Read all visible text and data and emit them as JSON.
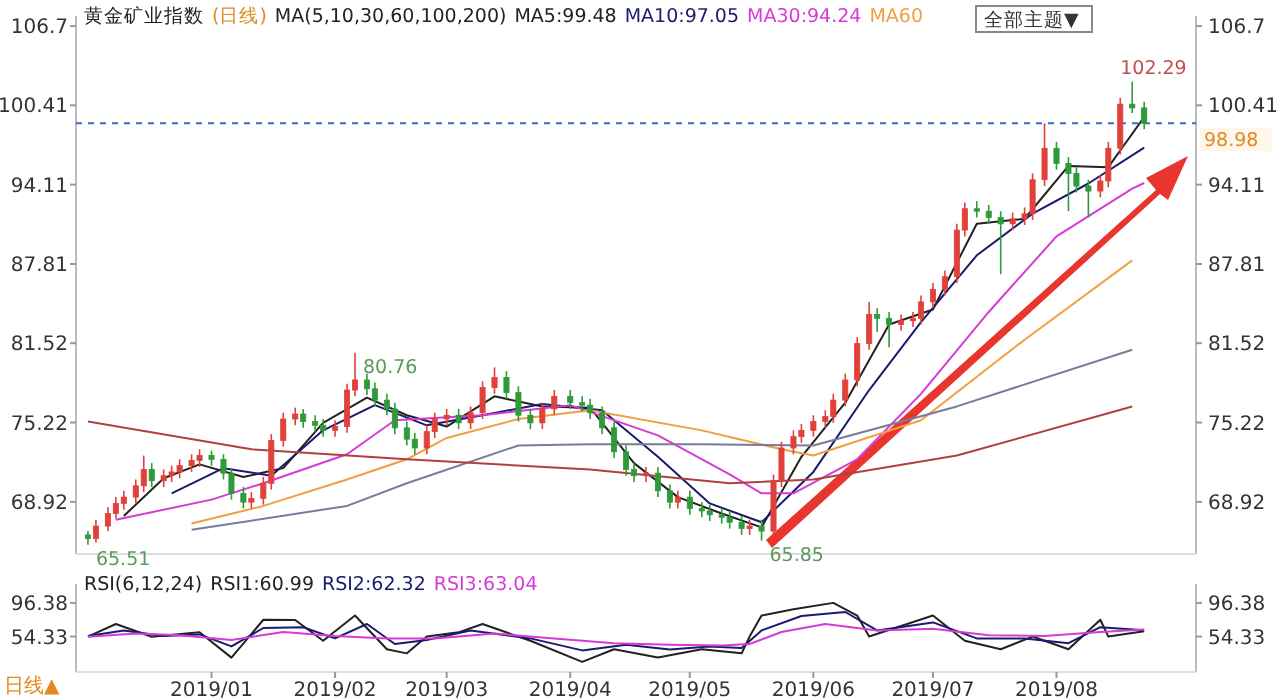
{
  "chart_data": [
    {
      "type": "candlestick",
      "title": "黄金矿业指数",
      "subtitle": "(日线)",
      "annotations": [
        "MA(5,10,30,60,100,200)",
        "全部主题▼",
        "日线▲",
        {
          "text": "102.29",
          "x": "2019-08-20",
          "y": 102.29
        },
        {
          "text": "80.76",
          "x": "2019-02-06",
          "y": 80.76
        },
        {
          "text": "65.51",
          "x": "2018-12-01",
          "y": 65.51
        },
        {
          "text": "65.85",
          "x": "2019-05-19",
          "y": 65.85
        }
      ],
      "x": [
        "2018-12-01",
        "2018-12-03",
        "2018-12-06",
        "2018-12-08",
        "2018-12-10",
        "2018-12-13",
        "2018-12-15",
        "2018-12-17",
        "2018-12-20",
        "2018-12-22",
        "2018-12-24",
        "2018-12-27",
        "2018-12-29",
        "2019-01-01",
        "2019-01-04",
        "2019-01-06",
        "2019-01-09",
        "2019-01-11",
        "2019-01-14",
        "2019-01-16",
        "2019-01-19",
        "2019-01-22",
        "2019-01-24",
        "2019-01-27",
        "2019-01-29",
        "2019-02-01",
        "2019-02-04",
        "2019-02-06",
        "2019-02-09",
        "2019-02-11",
        "2019-02-14",
        "2019-02-16",
        "2019-02-19",
        "2019-02-21",
        "2019-02-24",
        "2019-02-26",
        "2019-03-01",
        "2019-03-04",
        "2019-03-07",
        "2019-03-10",
        "2019-03-13",
        "2019-03-16",
        "2019-03-19",
        "2019-03-22",
        "2019-03-25",
        "2019-03-28",
        "2019-04-01",
        "2019-04-04",
        "2019-04-06",
        "2019-04-09",
        "2019-04-12",
        "2019-04-15",
        "2019-04-17",
        "2019-04-20",
        "2019-04-23",
        "2019-04-26",
        "2019-04-28",
        "2019-05-01",
        "2019-05-04",
        "2019-05-06",
        "2019-05-09",
        "2019-05-11",
        "2019-05-14",
        "2019-05-16",
        "2019-05-19",
        "2019-05-22",
        "2019-05-24",
        "2019-05-27",
        "2019-05-29",
        "2019-06-01",
        "2019-06-04",
        "2019-06-06",
        "2019-06-09",
        "2019-06-12",
        "2019-06-15",
        "2019-06-17",
        "2019-06-20",
        "2019-06-23",
        "2019-06-26",
        "2019-06-28",
        "2019-07-01",
        "2019-07-04",
        "2019-07-07",
        "2019-07-09",
        "2019-07-12",
        "2019-07-15",
        "2019-07-18",
        "2019-07-21",
        "2019-07-24",
        "2019-07-26",
        "2019-07-29",
        "2019-08-01",
        "2019-08-04",
        "2019-08-06",
        "2019-08-09",
        "2019-08-12",
        "2019-08-14",
        "2019-08-17",
        "2019-08-20",
        "2019-08-23"
      ],
      "ohlc": [
        [
          66.3,
          66.6,
          65.51,
          66.0
        ],
        [
          66.0,
          67.5,
          65.7,
          67.0
        ],
        [
          67.0,
          68.5,
          66.6,
          68.0
        ],
        [
          68.0,
          69.3,
          67.6,
          68.8
        ],
        [
          68.8,
          69.8,
          68.3,
          69.3
        ],
        [
          69.3,
          70.7,
          68.8,
          70.2
        ],
        [
          70.2,
          72.6,
          69.7,
          71.5
        ],
        [
          71.5,
          72.0,
          70.1,
          70.6
        ],
        [
          70.6,
          71.5,
          70.1,
          71.0
        ],
        [
          71.0,
          71.8,
          70.5,
          71.3
        ],
        [
          71.3,
          72.3,
          70.8,
          71.8
        ],
        [
          71.8,
          72.7,
          71.3,
          72.2
        ],
        [
          72.2,
          73.1,
          71.7,
          72.6
        ],
        [
          72.6,
          73.0,
          71.8,
          72.3
        ],
        [
          72.3,
          72.7,
          70.7,
          71.2
        ],
        [
          71.2,
          71.6,
          69.1,
          69.6
        ],
        [
          69.6,
          70.1,
          68.4,
          68.9
        ],
        [
          68.9,
          69.7,
          68.4,
          69.2
        ],
        [
          69.2,
          70.9,
          68.7,
          70.4
        ],
        [
          70.4,
          74.3,
          69.9,
          73.8
        ],
        [
          73.8,
          76.0,
          73.3,
          75.5
        ],
        [
          75.5,
          76.4,
          75.0,
          75.9
        ],
        [
          75.9,
          76.3,
          74.8,
          75.3
        ],
        [
          75.3,
          75.8,
          74.5,
          75.0
        ],
        [
          75.0,
          75.5,
          74.1,
          74.6
        ],
        [
          74.6,
          75.4,
          74.1,
          74.9
        ],
        [
          74.9,
          78.3,
          74.4,
          77.8
        ],
        [
          77.8,
          80.76,
          77.3,
          78.6
        ],
        [
          78.6,
          79.1,
          77.4,
          77.9
        ],
        [
          77.9,
          78.4,
          76.5,
          77.0
        ],
        [
          77.0,
          77.5,
          75.8,
          76.3
        ],
        [
          76.3,
          76.8,
          74.3,
          74.8
        ],
        [
          74.8,
          75.3,
          73.4,
          73.9
        ],
        [
          73.9,
          74.4,
          72.7,
          73.2
        ],
        [
          73.2,
          75.0,
          72.7,
          74.5
        ],
        [
          74.5,
          76.0,
          74.0,
          75.5
        ],
        [
          75.5,
          76.3,
          75.0,
          75.8
        ],
        [
          75.8,
          76.3,
          74.7,
          75.2
        ],
        [
          75.2,
          76.5,
          74.7,
          76.0
        ],
        [
          76.0,
          78.5,
          75.5,
          78.0
        ],
        [
          78.0,
          79.6,
          77.5,
          78.8
        ],
        [
          78.8,
          79.3,
          77.1,
          77.6
        ],
        [
          77.6,
          78.1,
          75.3,
          75.8
        ],
        [
          75.8,
          76.3,
          74.7,
          75.2
        ],
        [
          75.2,
          76.8,
          74.7,
          76.3
        ],
        [
          76.3,
          77.8,
          75.8,
          77.3
        ],
        [
          77.3,
          77.8,
          76.3,
          76.8
        ],
        [
          76.8,
          77.3,
          76.1,
          76.6
        ],
        [
          76.6,
          77.1,
          75.5,
          76.0
        ],
        [
          76.0,
          76.5,
          74.3,
          74.8
        ],
        [
          74.8,
          75.3,
          72.4,
          72.9
        ],
        [
          72.9,
          73.4,
          71.0,
          71.5
        ],
        [
          71.5,
          72.0,
          70.5,
          71.0
        ],
        [
          71.0,
          71.7,
          70.5,
          71.2
        ],
        [
          71.2,
          71.7,
          69.3,
          69.8
        ],
        [
          69.8,
          70.3,
          68.4,
          68.9
        ],
        [
          68.9,
          69.8,
          68.4,
          69.3
        ],
        [
          69.3,
          69.8,
          67.9,
          68.4
        ],
        [
          68.4,
          68.9,
          67.7,
          68.2
        ],
        [
          68.2,
          68.7,
          67.4,
          67.9
        ],
        [
          67.9,
          68.4,
          67.2,
          67.7
        ],
        [
          67.7,
          68.2,
          66.8,
          67.3
        ],
        [
          67.3,
          67.8,
          66.3,
          66.8
        ],
        [
          66.8,
          67.5,
          66.3,
          67.0
        ],
        [
          67.0,
          67.5,
          65.85,
          66.6
        ],
        [
          66.6,
          71.1,
          66.1,
          70.6
        ],
        [
          70.6,
          73.7,
          70.1,
          73.2
        ],
        [
          73.2,
          74.6,
          72.7,
          74.1
        ],
        [
          74.1,
          75.1,
          73.6,
          74.6
        ],
        [
          74.6,
          75.8,
          74.1,
          75.3
        ],
        [
          75.3,
          76.2,
          74.8,
          75.7
        ],
        [
          75.7,
          77.5,
          75.2,
          77.0
        ],
        [
          77.0,
          79.1,
          76.5,
          78.6
        ],
        [
          78.6,
          82.0,
          78.1,
          81.5
        ],
        [
          81.5,
          84.8,
          81.0,
          83.8
        ],
        [
          83.8,
          84.3,
          82.4,
          83.5
        ],
        [
          83.5,
          84.0,
          81.2,
          83.0
        ],
        [
          83.0,
          83.8,
          82.5,
          83.3
        ],
        [
          83.3,
          84.0,
          82.8,
          83.5
        ],
        [
          83.5,
          85.3,
          83.0,
          84.8
        ],
        [
          84.8,
          86.3,
          84.3,
          85.8
        ],
        [
          85.8,
          87.3,
          85.3,
          86.8
        ],
        [
          86.8,
          91.0,
          86.3,
          90.5
        ],
        [
          90.5,
          92.7,
          90.0,
          92.2
        ],
        [
          92.2,
          92.8,
          91.5,
          92.0
        ],
        [
          92.0,
          92.5,
          91.0,
          91.5
        ],
        [
          91.5,
          92.0,
          87.0,
          91.0
        ],
        [
          91.0,
          91.9,
          90.5,
          91.4
        ],
        [
          91.4,
          92.3,
          90.9,
          91.8
        ],
        [
          91.8,
          95.0,
          91.3,
          94.5
        ],
        [
          94.5,
          98.98,
          94.0,
          97.0
        ],
        [
          97.0,
          97.5,
          95.3,
          95.8
        ],
        [
          95.8,
          96.3,
          92.0,
          95.0
        ],
        [
          95.0,
          95.5,
          93.5,
          94.0
        ],
        [
          94.0,
          94.5,
          91.5,
          93.6
        ],
        [
          93.6,
          94.9,
          93.1,
          94.4
        ],
        [
          94.4,
          97.5,
          93.9,
          97.0
        ],
        [
          97.0,
          101.0,
          96.5,
          100.5
        ],
        [
          100.5,
          102.29,
          99.8,
          100.2
        ],
        [
          100.2,
          100.7,
          98.5,
          98.98
        ]
      ],
      "series": [
        {
          "type": "line",
          "name": "MA5:99.48",
          "color": "#222222",
          "x": [
            "2018-12-10",
            "2018-12-20",
            "2018-12-29",
            "2019-01-09",
            "2019-01-19",
            "2019-01-29",
            "2019-02-09",
            "2019-02-19",
            "2019-03-01",
            "2019-03-13",
            "2019-03-25",
            "2019-04-06",
            "2019-04-17",
            "2019-04-28",
            "2019-05-09",
            "2019-05-19",
            "2019-05-29",
            "2019-06-09",
            "2019-06-20",
            "2019-07-01",
            "2019-07-12",
            "2019-07-24",
            "2019-08-04",
            "2019-08-14",
            "2019-08-23"
          ],
          "values": [
            67.8,
            70.8,
            71.9,
            70.9,
            71.6,
            75.2,
            77.2,
            75.8,
            74.9,
            77.3,
            76.5,
            76.4,
            72.0,
            69.3,
            68.0,
            66.9,
            72.5,
            76.8,
            83.0,
            84.2,
            91.0,
            91.4,
            95.6,
            95.5,
            99.48
          ]
        },
        {
          "type": "line",
          "name": "MA10:97.05",
          "color": "#1a1a6e",
          "x": [
            "2018-12-22",
            "2019-01-04",
            "2019-01-16",
            "2019-01-29",
            "2019-02-11",
            "2019-02-24",
            "2019-03-10",
            "2019-03-25",
            "2019-04-09",
            "2019-04-23",
            "2019-05-06",
            "2019-05-19",
            "2019-06-01",
            "2019-06-15",
            "2019-06-28",
            "2019-07-12",
            "2019-07-26",
            "2019-08-09",
            "2019-08-23"
          ],
          "values": [
            69.6,
            71.6,
            71.0,
            74.6,
            76.6,
            75.0,
            75.8,
            76.7,
            76.2,
            72.5,
            68.8,
            67.3,
            71.3,
            77.8,
            83.2,
            88.5,
            91.8,
            94.2,
            97.05
          ]
        },
        {
          "type": "line",
          "name": "MA30:94.24",
          "color": "#d63bd6",
          "x": [
            "2018-12-08",
            "2019-01-01",
            "2019-01-14",
            "2019-02-04",
            "2019-02-16",
            "2019-03-10",
            "2019-04-01",
            "2019-04-23",
            "2019-05-11",
            "2019-05-19",
            "2019-05-27",
            "2019-06-12",
            "2019-06-28",
            "2019-07-15",
            "2019-08-01",
            "2019-08-20",
            "2019-08-23"
          ],
          "values": [
            67.5,
            69.1,
            70.4,
            72.7,
            75.4,
            75.8,
            76.6,
            74.2,
            71.1,
            69.6,
            69.6,
            72.3,
            77.5,
            84.0,
            90.0,
            93.8,
            94.24
          ]
        },
        {
          "type": "line",
          "name": "MA60",
          "color": "#f0a040",
          "x": [
            "2018-12-27",
            "2019-01-14",
            "2019-02-04",
            "2019-02-19",
            "2019-03-01",
            "2019-03-19",
            "2019-04-06",
            "2019-05-04",
            "2019-05-24",
            "2019-06-01",
            "2019-06-28",
            "2019-07-24",
            "2019-08-20"
          ],
          "values": [
            67.2,
            68.6,
            70.7,
            72.3,
            74.0,
            75.5,
            76.2,
            74.6,
            73.1,
            72.6,
            75.4,
            81.8,
            88.1
          ]
        },
        {
          "type": "line",
          "color": "#7a7a9a",
          "x": [
            "2018-12-27",
            "2019-02-04",
            "2019-02-19",
            "2019-03-19",
            "2019-04-06",
            "2019-05-04",
            "2019-06-01",
            "2019-07-07",
            "2019-08-20"
          ],
          "values": [
            66.7,
            68.6,
            70.4,
            73.4,
            73.5,
            73.5,
            73.4,
            76.5,
            81.0
          ]
        },
        {
          "type": "line",
          "color": "#b04040",
          "x": [
            "2018-12-01",
            "2019-01-11",
            "2019-02-19",
            "2019-04-06",
            "2019-05-11",
            "2019-06-01",
            "2019-07-07",
            "2019-08-20"
          ],
          "values": [
            75.3,
            73.1,
            72.3,
            71.5,
            70.4,
            70.7,
            72.6,
            76.5
          ]
        }
      ],
      "ref_lines": [
        {
          "axis": "y2",
          "value": 98.98,
          "label": "98.98",
          "color": "#3a6fc0",
          "line_style": "dashed"
        }
      ],
      "xlim": [
        "2018-11-28",
        "2019-09-05"
      ],
      "ylim": [
        65.1,
        107.5
      ],
      "yticks": [
        68.92,
        75.22,
        81.52,
        87.81,
        94.11,
        100.41,
        106.7
      ],
      "y2lim": [
        65.1,
        107.5
      ],
      "y2ticks": [
        68.92,
        75.22,
        81.52,
        87.81,
        94.11,
        100.41,
        106.7
      ],
      "tick_labels": "y"
    },
    {
      "type": "line",
      "title": "RSI(6,12,24)",
      "series": [
        {
          "name": "RSI1:60.99",
          "color": "#222222",
          "x": [
            "2018-12-01",
            "2018-12-08",
            "2018-12-17",
            "2018-12-29",
            "2019-01-06",
            "2019-01-14",
            "2019-01-22",
            "2019-01-29",
            "2019-02-06",
            "2019-02-14",
            "2019-02-19",
            "2019-02-24",
            "2019-03-04",
            "2019-03-10",
            "2019-03-22",
            "2019-04-04",
            "2019-04-12",
            "2019-04-23",
            "2019-05-04",
            "2019-05-14",
            "2019-05-16",
            "2019-05-19",
            "2019-05-27",
            "2019-06-06",
            "2019-06-12",
            "2019-06-15",
            "2019-07-01",
            "2019-07-09",
            "2019-07-18",
            "2019-07-26",
            "2019-08-04",
            "2019-08-12",
            "2019-08-14",
            "2019-08-23"
          ],
          "values": [
            54.3,
            70,
            54,
            59.6,
            28,
            75.3,
            75,
            49,
            80.6,
            38.5,
            33.3,
            54.3,
            59.6,
            70,
            49,
            22.7,
            38.5,
            28,
            38.5,
            33.3,
            54.3,
            80.6,
            88.5,
            96.4,
            80.6,
            54.3,
            80.6,
            49,
            38.5,
            54.3,
            38.5,
            75.3,
            54.3,
            60.99
          ]
        },
        {
          "name": "RSI2:62.32",
          "color": "#1a1a6e",
          "x": [
            "2018-12-01",
            "2018-12-10",
            "2018-12-20",
            "2018-12-29",
            "2019-01-06",
            "2019-01-14",
            "2019-01-24",
            "2019-02-01",
            "2019-02-09",
            "2019-02-16",
            "2019-02-24",
            "2019-03-07",
            "2019-03-22",
            "2019-04-04",
            "2019-04-15",
            "2019-04-26",
            "2019-05-06",
            "2019-05-14",
            "2019-05-19",
            "2019-05-29",
            "2019-06-09",
            "2019-06-17",
            "2019-07-01",
            "2019-07-12",
            "2019-07-24",
            "2019-08-04",
            "2019-08-12",
            "2019-08-23"
          ],
          "values": [
            55,
            62,
            55,
            57,
            42,
            65,
            66,
            52,
            70,
            45,
            50,
            62,
            52,
            37,
            44,
            38,
            42,
            40,
            62,
            80,
            85,
            62,
            72,
            52,
            52,
            46,
            66,
            62.32
          ]
        },
        {
          "name": "RSI3:63.04",
          "color": "#d63bd6",
          "x": [
            "2018-12-01",
            "2018-12-13",
            "2018-12-24",
            "2019-01-06",
            "2019-01-19",
            "2019-02-01",
            "2019-02-14",
            "2019-02-26",
            "2019-03-13",
            "2019-03-28",
            "2019-04-12",
            "2019-04-26",
            "2019-05-09",
            "2019-05-16",
            "2019-05-24",
            "2019-06-04",
            "2019-06-17",
            "2019-07-01",
            "2019-07-15",
            "2019-07-29",
            "2019-08-12",
            "2019-08-23"
          ],
          "values": [
            54,
            58,
            56,
            50,
            60,
            55,
            52,
            52,
            58,
            52,
            46,
            44,
            43,
            45,
            60,
            70,
            62,
            64,
            56,
            55,
            60,
            63.04
          ]
        }
      ],
      "xlim": [
        "2018-11-28",
        "2019-09-05"
      ],
      "xticks": [
        {
          "value": "2019-01-01",
          "label": "2019/01"
        },
        {
          "value": "2019-02-01",
          "label": "2019/02"
        },
        {
          "value": "2019-03-01",
          "label": "2019/03"
        },
        {
          "value": "2019-04-01",
          "label": "2019/04"
        },
        {
          "value": "2019-05-01",
          "label": "2019/05"
        },
        {
          "value": "2019-06-01",
          "label": "2019/06"
        },
        {
          "value": "2019-07-01",
          "label": "2019/07"
        },
        {
          "value": "2019-08-01",
          "label": "2019/08"
        }
      ],
      "ylim": [
        15,
        120
      ],
      "yticks": [
        54.33,
        96.38
      ],
      "y2lim": [
        15,
        120
      ],
      "y2ticks": [
        54.33,
        96.38
      ]
    }
  ]
}
